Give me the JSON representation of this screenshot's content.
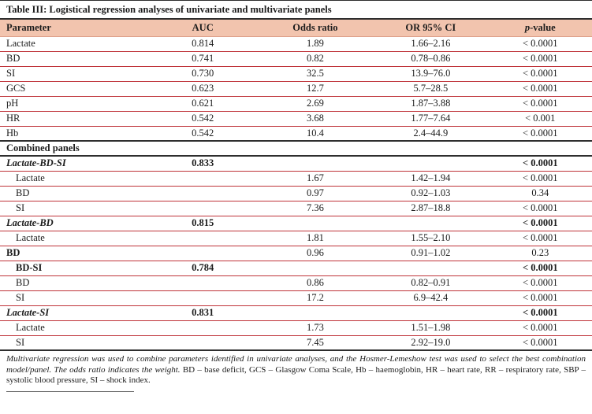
{
  "title": "Table III: Logistical regression analyses of univariate and multivariate panels",
  "table": {
    "columns": [
      "Parameter",
      "AUC",
      "Odds ratio",
      "OR 95% CI",
      "p-value"
    ],
    "p_value_header": {
      "italic": "p",
      "rest": "-value"
    },
    "rows": [
      {
        "label": "Lactate",
        "auc": "0.814",
        "odds_ratio": "1.89",
        "ci": "1.66–2.16",
        "p": "< 0.0001",
        "style": "plain",
        "black_border": false
      },
      {
        "label": "BD",
        "auc": "0.741",
        "odds_ratio": "0.82",
        "ci": "0.78–0.86",
        "p": "< 0.0001",
        "style": "plain",
        "black_border": false
      },
      {
        "label": "SI",
        "auc": "0.730",
        "odds_ratio": "32.5",
        "ci": "13.9–76.0",
        "p": "< 0.0001",
        "style": "plain",
        "black_border": false
      },
      {
        "label": "GCS",
        "auc": "0.623",
        "odds_ratio": "12.7",
        "ci": "5.7–28.5",
        "p": "< 0.0001",
        "style": "plain",
        "black_border": false
      },
      {
        "label": "pH",
        "auc": "0.621",
        "odds_ratio": "2.69",
        "ci": "1.87–3.88",
        "p": "< 0.0001",
        "style": "plain",
        "black_border": false
      },
      {
        "label": "HR",
        "auc": "0.542",
        "odds_ratio": "3.68",
        "ci": "1.77–7.64",
        "p": "< 0.001",
        "style": "plain",
        "black_border": false
      },
      {
        "label": "Hb",
        "auc": "0.542",
        "odds_ratio": "10.4",
        "ci": "2.4–44.9",
        "p": "< 0.0001",
        "style": "plain",
        "black_border": true
      },
      {
        "label": "Combined panels",
        "auc": "",
        "odds_ratio": "",
        "ci": "",
        "p": "",
        "style": "section",
        "black_border": true
      },
      {
        "label": "Lactate-BD-SI",
        "auc": "0.833",
        "odds_ratio": "",
        "ci": "",
        "p": "< 0.0001",
        "style": "panel-italic",
        "black_border": false
      },
      {
        "label": "Lactate",
        "auc": "",
        "odds_ratio": "1.67",
        "ci": "1.42–1.94",
        "p": "< 0.0001",
        "style": "sub",
        "black_border": false
      },
      {
        "label": "BD",
        "auc": "",
        "odds_ratio": "0.97",
        "ci": "0.92–1.03",
        "p": "0.34",
        "style": "sub",
        "black_border": false
      },
      {
        "label": "SI",
        "auc": "",
        "odds_ratio": "7.36",
        "ci": "2.87–18.8",
        "p": "< 0.0001",
        "style": "sub",
        "black_border": false
      },
      {
        "label": "Lactate-BD",
        "auc": "0.815",
        "odds_ratio": "",
        "ci": "",
        "p": "< 0.0001",
        "style": "panel-italic",
        "black_border": false
      },
      {
        "label": "Lactate",
        "auc": "",
        "odds_ratio": "1.81",
        "ci": "1.55–2.10",
        "p": "< 0.0001",
        "style": "sub",
        "black_border": false
      },
      {
        "label": "BD",
        "auc": "",
        "odds_ratio": "0.96",
        "ci": "0.91–1.02",
        "p": "0.23",
        "style": "bold-left",
        "black_border": false
      },
      {
        "label": "BD-SI",
        "auc": "0.784",
        "odds_ratio": "",
        "ci": "",
        "p": "< 0.0001",
        "style": "panel-bold-indent",
        "black_border": false
      },
      {
        "label": "BD",
        "auc": "",
        "odds_ratio": "0.86",
        "ci": "0.82–0.91",
        "p": "< 0.0001",
        "style": "sub",
        "black_border": false
      },
      {
        "label": "SI",
        "auc": "",
        "odds_ratio": "17.2",
        "ci": "6.9–42.4",
        "p": "< 0.0001",
        "style": "sub",
        "black_border": false
      },
      {
        "label": "Lactate-SI",
        "auc": "0.831",
        "odds_ratio": "",
        "ci": "",
        "p": "< 0.0001",
        "style": "panel-italic",
        "black_border": false
      },
      {
        "label": "Lactate",
        "auc": "",
        "odds_ratio": "1.73",
        "ci": "1.51–1.98",
        "p": "< 0.0001",
        "style": "sub",
        "black_border": false
      },
      {
        "label": "SI",
        "auc": "",
        "odds_ratio": "7.45",
        "ci": "2.92–19.0",
        "p": "< 0.0001",
        "style": "sub",
        "black_border": true
      }
    ]
  },
  "footnote": {
    "italic_part": "Multivariate regression was used to combine parameters identified in univariate analyses, and the Hosmer-Lemeshow test was used to select the best combination model/panel. The odds ratio indicates the weight. ",
    "regular_part": "BD – base deficit, GCS – Glasgow Coma Scale, Hb – haemoglobin, HR – heart rate, RR – respiratory rate, SBP – systolic blood pressure, SI – shock index."
  },
  "colors": {
    "header_background": "#f2c4ae",
    "row_separator": "#bf3339",
    "section_separator": "#2e2e2e",
    "text_color": "#1c1c1c"
  }
}
